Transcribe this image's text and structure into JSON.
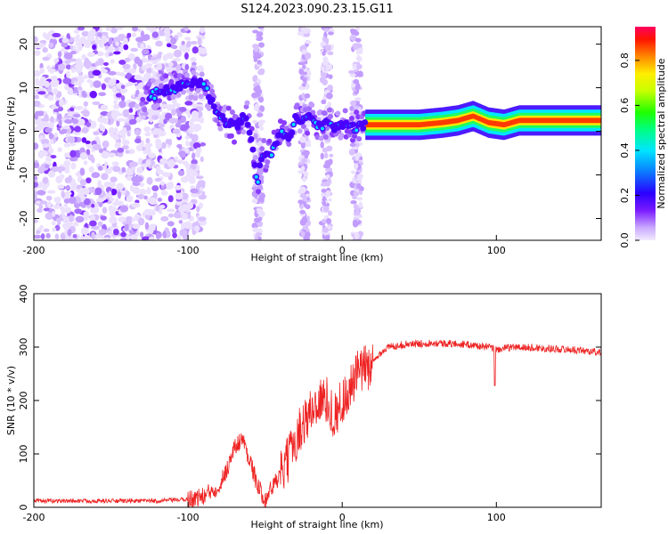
{
  "title": "S124.2023.090.23.15.G11",
  "chart_data": [
    {
      "type": "heatmap",
      "xlabel": "Height of straight line (km)",
      "ylabel": "Frequency (Hz)",
      "xlim": [
        -200,
        168
      ],
      "ylim": [
        -25,
        24
      ],
      "xticks": [
        -200,
        -100,
        0,
        100
      ],
      "yticks": [
        -20,
        -10,
        0,
        10,
        20
      ],
      "colorbar": {
        "label": "Normalized spectral amplitude",
        "range": [
          0.0,
          0.95
        ],
        "ticks": [
          "0.0",
          "0.2",
          "0.4",
          "0.6",
          "0.8"
        ]
      },
      "ridge": {
        "x": [
          -125,
          -110,
          -100,
          -90,
          -85,
          -78,
          -70,
          -62,
          -58,
          -55,
          -52,
          -48,
          -45,
          -40,
          -35,
          -30,
          -25,
          -20,
          -15,
          -10,
          -5,
          0,
          5,
          10,
          15,
          30,
          50,
          65,
          75,
          85,
          95,
          105,
          115,
          130,
          150,
          168
        ],
        "y": [
          8,
          10,
          11,
          11,
          7,
          3,
          1,
          4,
          -4,
          -12,
          -5,
          -6,
          -4,
          0,
          -2,
          3,
          3,
          3,
          1,
          2,
          1,
          2,
          1,
          1,
          1.5,
          1.5,
          1.5,
          2,
          2.5,
          3.5,
          2,
          1.5,
          2.5,
          2.5,
          2.5,
          2.5
        ]
      },
      "noise_region_x": [
        -200,
        -100
      ]
    },
    {
      "type": "line",
      "xlabel": "Height of straight line (km)",
      "ylabel": "SNR (10 * v/v)",
      "xlim": [
        -200,
        168
      ],
      "ylim": [
        0,
        400
      ],
      "xticks": [
        -200,
        -100,
        0,
        100
      ],
      "yticks": [
        0,
        100,
        200,
        300,
        400
      ],
      "color": "#ee2222",
      "envelope": {
        "x": [
          -200,
          -120,
          -100,
          -90,
          -80,
          -75,
          -70,
          -65,
          -60,
          -55,
          -50,
          -45,
          -40,
          -35,
          -30,
          -25,
          -20,
          -15,
          -10,
          -5,
          0,
          5,
          10,
          15,
          20,
          25,
          30,
          40,
          60,
          80,
          95,
          100,
          110,
          130,
          150,
          168
        ],
        "y": [
          12,
          12,
          15,
          20,
          40,
          70,
          110,
          130,
          90,
          40,
          15,
          40,
          60,
          90,
          130,
          160,
          180,
          200,
          200,
          170,
          200,
          220,
          250,
          260,
          270,
          290,
          300,
          305,
          308,
          305,
          300,
          295,
          300,
          298,
          295,
          290
        ]
      },
      "spike": {
        "x": 99,
        "y": 228
      }
    }
  ]
}
